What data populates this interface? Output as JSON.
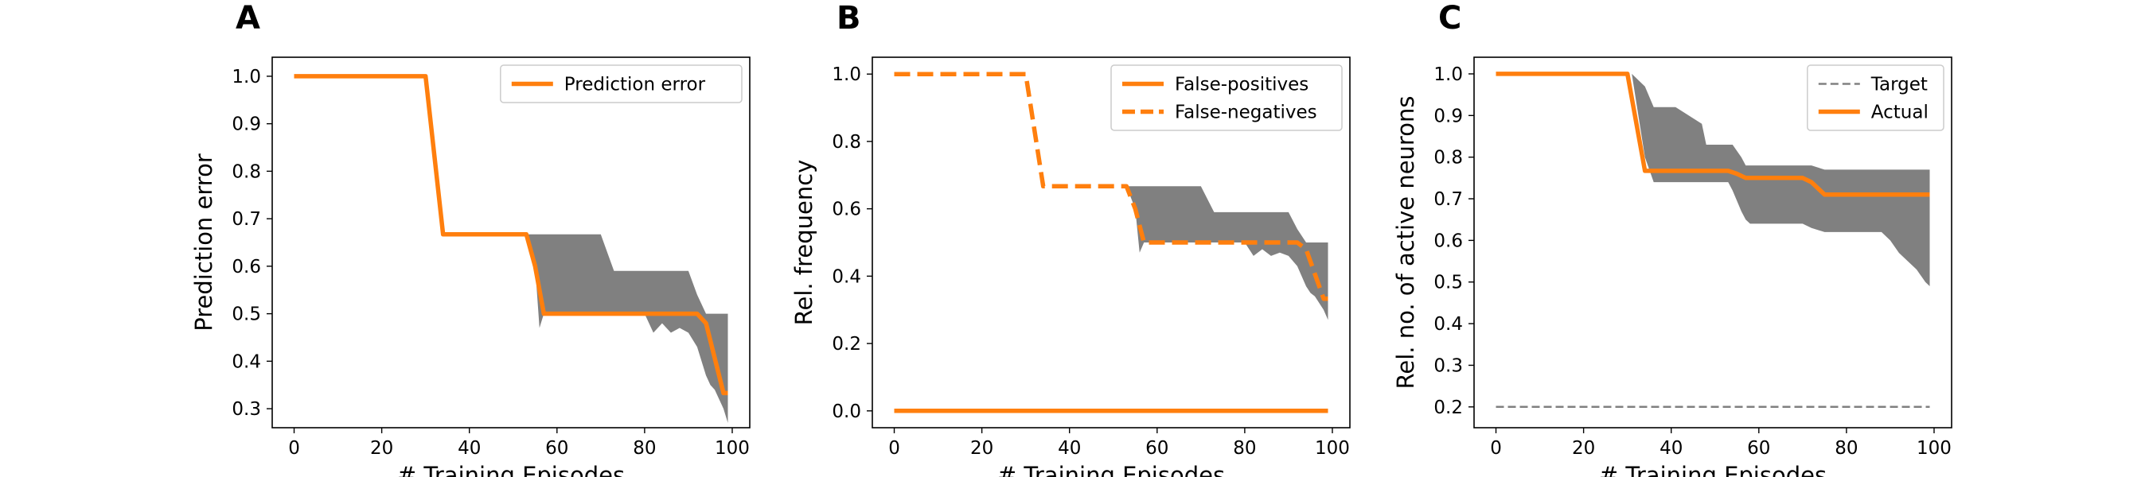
{
  "chart_data": [
    {
      "panel": "A",
      "type": "line",
      "xlabel": "# Training Episodes",
      "ylabel": "Prediction error",
      "xlim": [
        -5,
        104
      ],
      "ylim": [
        0.26,
        1.04
      ],
      "xticks": [
        0,
        20,
        40,
        60,
        80,
        100
      ],
      "yticks": [
        0.3,
        0.4,
        0.5,
        0.6,
        0.7,
        0.8,
        0.9,
        1.0
      ],
      "legend_loc": "upper right",
      "colors": {
        "line": "#ff7f0e",
        "band": "#808080"
      },
      "series": [
        {
          "name": "Prediction error",
          "style": "solid",
          "color": "#ff7f0e",
          "x": [
            0,
            30,
            34,
            53,
            55,
            57,
            92,
            94,
            98,
            99
          ],
          "y": [
            1.0,
            1.0,
            0.667,
            0.667,
            0.6,
            0.5,
            0.5,
            0.48,
            0.333,
            0.333
          ]
        }
      ],
      "band": {
        "x": [
          53,
          55,
          56,
          57,
          60,
          70,
          73,
          80,
          82,
          84,
          86,
          88,
          90,
          92,
          94,
          95,
          96,
          98,
          99
        ],
        "upper": [
          0.667,
          0.667,
          0.667,
          0.667,
          0.667,
          0.667,
          0.59,
          0.59,
          0.59,
          0.59,
          0.59,
          0.59,
          0.59,
          0.54,
          0.5,
          0.5,
          0.5,
          0.5,
          0.5
        ],
        "lower": [
          0.667,
          0.6,
          0.47,
          0.5,
          0.5,
          0.5,
          0.5,
          0.5,
          0.46,
          0.48,
          0.46,
          0.47,
          0.46,
          0.43,
          0.37,
          0.35,
          0.34,
          0.3,
          0.27
        ]
      }
    },
    {
      "panel": "B",
      "type": "line",
      "xlabel": "# Training Episodes",
      "ylabel": "Rel. frequency",
      "xlim": [
        -5,
        104
      ],
      "ylim": [
        -0.05,
        1.05
      ],
      "xticks": [
        0,
        20,
        40,
        60,
        80,
        100
      ],
      "yticks": [
        0.0,
        0.2,
        0.4,
        0.6,
        0.8,
        1.0
      ],
      "legend_loc": "upper right",
      "colors": {
        "line": "#ff7f0e",
        "band": "#808080"
      },
      "series": [
        {
          "name": "False-positives",
          "style": "solid",
          "color": "#ff7f0e",
          "x": [
            0,
            99
          ],
          "y": [
            0.0,
            0.0
          ]
        },
        {
          "name": "False-negatives",
          "style": "dashed",
          "color": "#ff7f0e",
          "x": [
            0,
            30,
            34,
            53,
            55,
            57,
            92,
            94,
            98,
            99
          ],
          "y": [
            1.0,
            1.0,
            0.667,
            0.667,
            0.6,
            0.5,
            0.5,
            0.48,
            0.333,
            0.333
          ]
        }
      ],
      "band": {
        "x": [
          53,
          55,
          56,
          57,
          60,
          70,
          73,
          80,
          82,
          84,
          86,
          88,
          90,
          92,
          94,
          95,
          96,
          98,
          99
        ],
        "upper": [
          0.667,
          0.667,
          0.667,
          0.667,
          0.667,
          0.667,
          0.59,
          0.59,
          0.59,
          0.59,
          0.59,
          0.59,
          0.59,
          0.54,
          0.5,
          0.5,
          0.5,
          0.5,
          0.5
        ],
        "lower": [
          0.667,
          0.6,
          0.47,
          0.5,
          0.5,
          0.5,
          0.5,
          0.5,
          0.46,
          0.48,
          0.46,
          0.47,
          0.46,
          0.43,
          0.37,
          0.35,
          0.34,
          0.3,
          0.27
        ]
      }
    },
    {
      "panel": "C",
      "type": "line",
      "xlabel": "# Training Episodes",
      "ylabel": "Rel. no. of active neurons",
      "xlim": [
        -5,
        104
      ],
      "ylim": [
        0.15,
        1.04
      ],
      "xticks": [
        0,
        20,
        40,
        60,
        80,
        100
      ],
      "yticks": [
        0.2,
        0.3,
        0.4,
        0.5,
        0.6,
        0.7,
        0.8,
        0.9,
        1.0
      ],
      "legend_loc": "upper right",
      "colors": {
        "line": "#ff7f0e",
        "band": "#808080",
        "target": "#808080"
      },
      "series": [
        {
          "name": "Target",
          "style": "dashed-thin",
          "color": "#808080",
          "x": [
            0,
            99
          ],
          "y": [
            0.2,
            0.2
          ]
        },
        {
          "name": "Actual",
          "style": "solid",
          "color": "#ff7f0e",
          "x": [
            0,
            30,
            34,
            53,
            55,
            57,
            70,
            72,
            75,
            99
          ],
          "y": [
            1.0,
            1.0,
            0.767,
            0.767,
            0.76,
            0.75,
            0.75,
            0.74,
            0.71,
            0.71
          ]
        }
      ],
      "band": {
        "x": [
          30,
          31,
          34,
          36,
          40,
          41,
          47,
          48,
          53,
          54,
          56,
          57,
          58,
          62,
          70,
          72,
          75,
          88,
          90,
          92,
          94,
          96,
          98,
          99
        ],
        "upper": [
          1.0,
          1.0,
          0.97,
          0.92,
          0.92,
          0.92,
          0.88,
          0.83,
          0.83,
          0.83,
          0.8,
          0.78,
          0.78,
          0.78,
          0.78,
          0.78,
          0.77,
          0.77,
          0.77,
          0.77,
          0.77,
          0.77,
          0.77,
          0.77
        ],
        "lower": [
          1.0,
          1.0,
          0.8,
          0.74,
          0.74,
          0.74,
          0.74,
          0.74,
          0.74,
          0.72,
          0.67,
          0.65,
          0.64,
          0.64,
          0.64,
          0.63,
          0.62,
          0.62,
          0.6,
          0.57,
          0.55,
          0.53,
          0.5,
          0.49
        ]
      }
    }
  ]
}
